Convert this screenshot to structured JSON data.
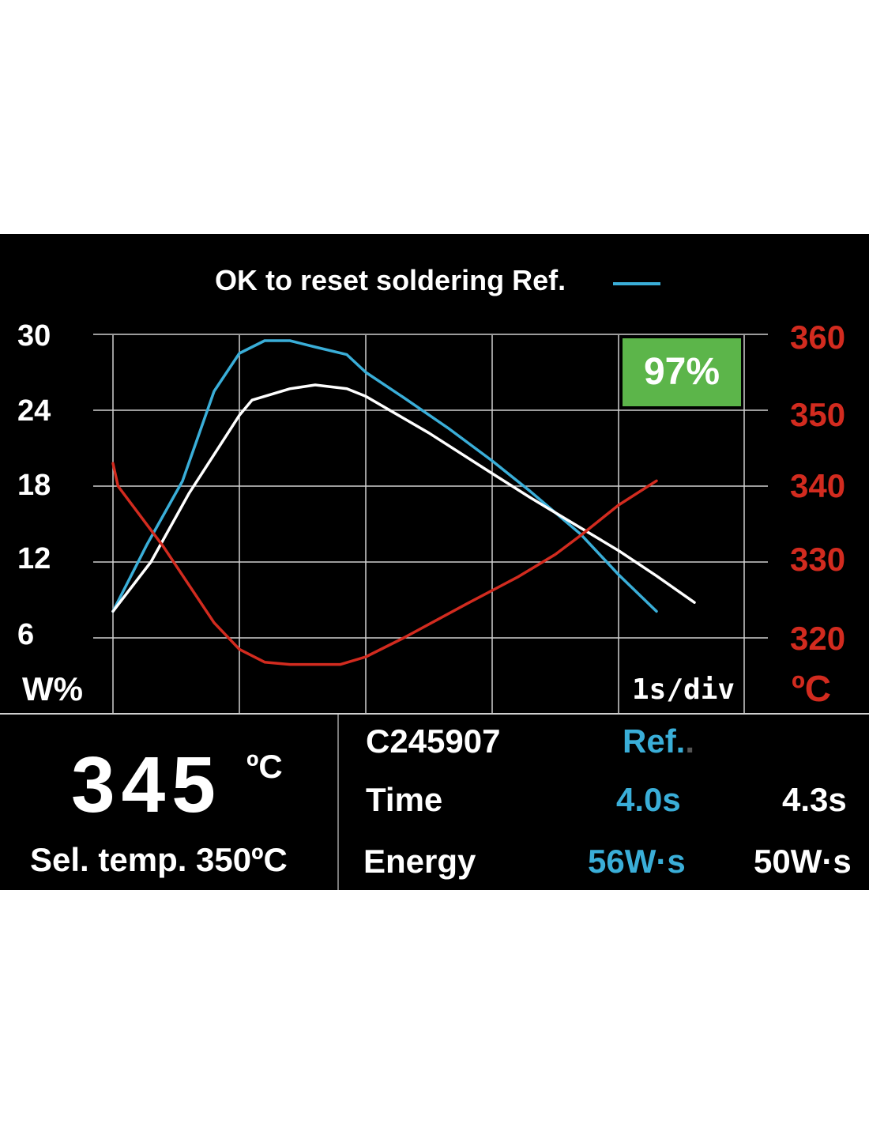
{
  "colors": {
    "screen_bg": "#000000",
    "grid": "#cfcfcf",
    "reference": "#3aaed8",
    "current": "#ffffff",
    "temperature": "#d22b1f",
    "badge_bg": "#5cb54a"
  },
  "header": {
    "legend_label": "OK to reset soldering Ref."
  },
  "badge": {
    "match_percent": "97%"
  },
  "axes": {
    "left_unit": "W%",
    "right_unit": "ºC",
    "x_scale": "1s/div"
  },
  "chart_data": {
    "type": "line",
    "x_unit": "s",
    "xlim": [
      0,
      5
    ],
    "y_left": {
      "label": "W%",
      "ticks": [
        30,
        24,
        18,
        12,
        6
      ],
      "range": [
        6,
        30
      ]
    },
    "y_right": {
      "label": "ºC",
      "ticks": [
        360,
        350,
        340,
        330,
        320
      ],
      "range": [
        320,
        360
      ]
    },
    "grid": true,
    "legend": "top-center",
    "series": [
      {
        "name": "Ref.",
        "axis": "left",
        "color": "#3aaed8",
        "points": [
          [
            0.0,
            8.1
          ],
          [
            0.27,
            13.4
          ],
          [
            0.55,
            18.4
          ],
          [
            0.8,
            25.5
          ],
          [
            1.0,
            28.5
          ],
          [
            1.2,
            29.5
          ],
          [
            1.4,
            29.5
          ],
          [
            1.6,
            29.0
          ],
          [
            1.85,
            28.4
          ],
          [
            2.0,
            27.0
          ],
          [
            2.3,
            25.0
          ],
          [
            2.65,
            22.6
          ],
          [
            3.0,
            20.0
          ],
          [
            3.3,
            17.6
          ],
          [
            3.7,
            14.2
          ],
          [
            4.0,
            11.0
          ],
          [
            4.3,
            8.1
          ]
        ]
      },
      {
        "axis": "left",
        "color": "#ffffff",
        "points": [
          [
            0.0,
            8.1
          ],
          [
            0.3,
            12.0
          ],
          [
            0.6,
            17.4
          ],
          [
            1.0,
            23.6
          ],
          [
            1.1,
            24.8
          ],
          [
            1.4,
            25.7
          ],
          [
            1.6,
            26.0
          ],
          [
            1.85,
            25.7
          ],
          [
            2.0,
            25.1
          ],
          [
            2.5,
            22.2
          ],
          [
            3.0,
            19.0
          ],
          [
            3.3,
            17.1
          ],
          [
            3.6,
            15.3
          ],
          [
            4.0,
            12.9
          ],
          [
            4.3,
            10.9
          ],
          [
            4.6,
            8.8
          ]
        ]
      },
      {
        "axis": "right",
        "color": "#d22b1f",
        "points": [
          [
            0.0,
            343.0
          ],
          [
            0.04,
            340.0
          ],
          [
            0.4,
            332.0
          ],
          [
            0.8,
            322.0
          ],
          [
            1.0,
            318.5
          ],
          [
            1.2,
            316.8
          ],
          [
            1.4,
            316.5
          ],
          [
            1.8,
            316.5
          ],
          [
            2.0,
            317.5
          ],
          [
            2.3,
            320.0
          ],
          [
            2.8,
            324.5
          ],
          [
            3.2,
            328.0
          ],
          [
            3.5,
            331.0
          ],
          [
            3.7,
            333.5
          ],
          [
            4.0,
            337.5
          ],
          [
            4.3,
            340.7
          ]
        ]
      }
    ]
  },
  "readout": {
    "actual_temp": "345",
    "actual_unit": "ºC",
    "selected_temp": "Sel. temp. 350ºC"
  },
  "info": {
    "cartridge": "C245907",
    "ref_header": "Ref.",
    "ref_header_dot": ".",
    "time_label": "Time",
    "time_ref": "4.0s",
    "time_current": "4.3s",
    "energy_label": "Energy",
    "energy_ref": "56W·s",
    "energy_current": "50W·s"
  }
}
